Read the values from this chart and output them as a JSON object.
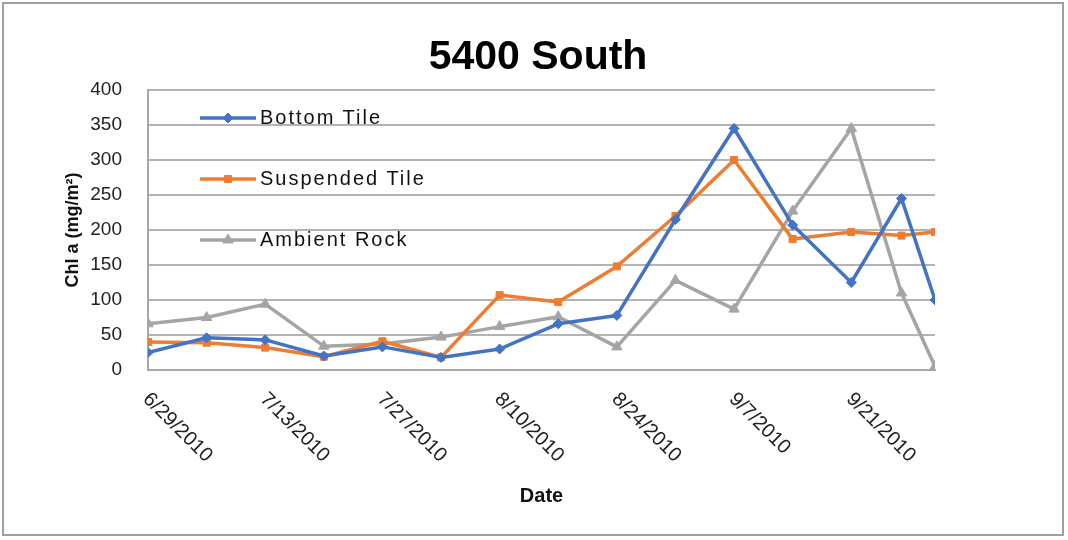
{
  "chart_data": {
    "type": "line",
    "title": "5400 South",
    "xlabel": "Date",
    "ylabel": "Chl a (mg/m²)",
    "x": [
      "2010-06-29",
      "2010-07-06",
      "2010-07-13",
      "2010-07-20",
      "2010-07-27",
      "2010-08-03",
      "2010-08-10",
      "2010-08-17",
      "2010-08-24",
      "2010-08-31",
      "2010-09-07",
      "2010-09-14",
      "2010-09-21",
      "2010-09-27",
      "2010-10-01"
    ],
    "series": [
      {
        "name": "Bottom Tile",
        "color": "#4472c4",
        "marker": "diamond",
        "values": [
          25,
          46,
          43,
          20,
          33,
          18,
          30,
          66,
          78,
          215,
          345,
          207,
          125,
          245,
          100
        ]
      },
      {
        "name": "Suspended Tile",
        "color": "#ed7d31",
        "marker": "square",
        "values": [
          40,
          39,
          32,
          19,
          41,
          18,
          107,
          97,
          148,
          220,
          300,
          187,
          197,
          192,
          197
        ]
      },
      {
        "name": "Ambient Rock",
        "color": "#a5a5a5",
        "marker": "triangle",
        "values": [
          66,
          75,
          94,
          34,
          37,
          47,
          62,
          76,
          33,
          128,
          87,
          227,
          345,
          110,
          5
        ]
      }
    ],
    "xlim": [
      "2010-06-29",
      "2010-10-01"
    ],
    "xticks": [
      {
        "value": "2010-06-29",
        "label": "6/29/2010"
      },
      {
        "value": "2010-07-13",
        "label": "7/13/2010"
      },
      {
        "value": "2010-07-27",
        "label": "7/27/2010"
      },
      {
        "value": "2010-08-10",
        "label": "8/10/2010"
      },
      {
        "value": "2010-08-24",
        "label": "8/24/2010"
      },
      {
        "value": "2010-09-07",
        "label": "9/7/2010"
      },
      {
        "value": "2010-09-21",
        "label": "9/21/2010"
      }
    ],
    "ylim": [
      0,
      400
    ],
    "yticks": [
      0,
      50,
      100,
      150,
      200,
      250,
      300,
      350,
      400
    ],
    "grid": "y",
    "legend": "top left",
    "line_style": "solid"
  }
}
